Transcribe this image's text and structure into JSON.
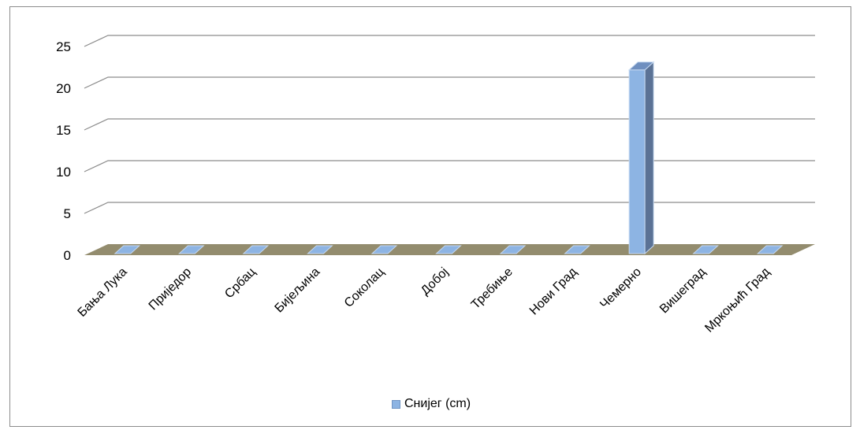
{
  "chart_data": {
    "type": "bar",
    "categories": [
      "Бања Лука",
      "Приједор",
      "Србац",
      "Бијељина",
      "Соколац",
      "Добој",
      "Требиње",
      "Нови Град",
      "Чемерно",
      "Вишеград",
      "Мркоњић Град"
    ],
    "series": [
      {
        "name": "Снијег (cm)",
        "values": [
          0,
          0,
          0,
          0,
          0,
          0,
          0,
          0,
          22,
          0,
          0
        ],
        "color": "#8db4e3"
      }
    ],
    "yticks": [
      "0",
      "5",
      "10",
      "15",
      "20",
      "25"
    ],
    "ylim": [
      0,
      25
    ],
    "grid": true,
    "legend": "bottom",
    "floor_color": "#938c6e"
  }
}
